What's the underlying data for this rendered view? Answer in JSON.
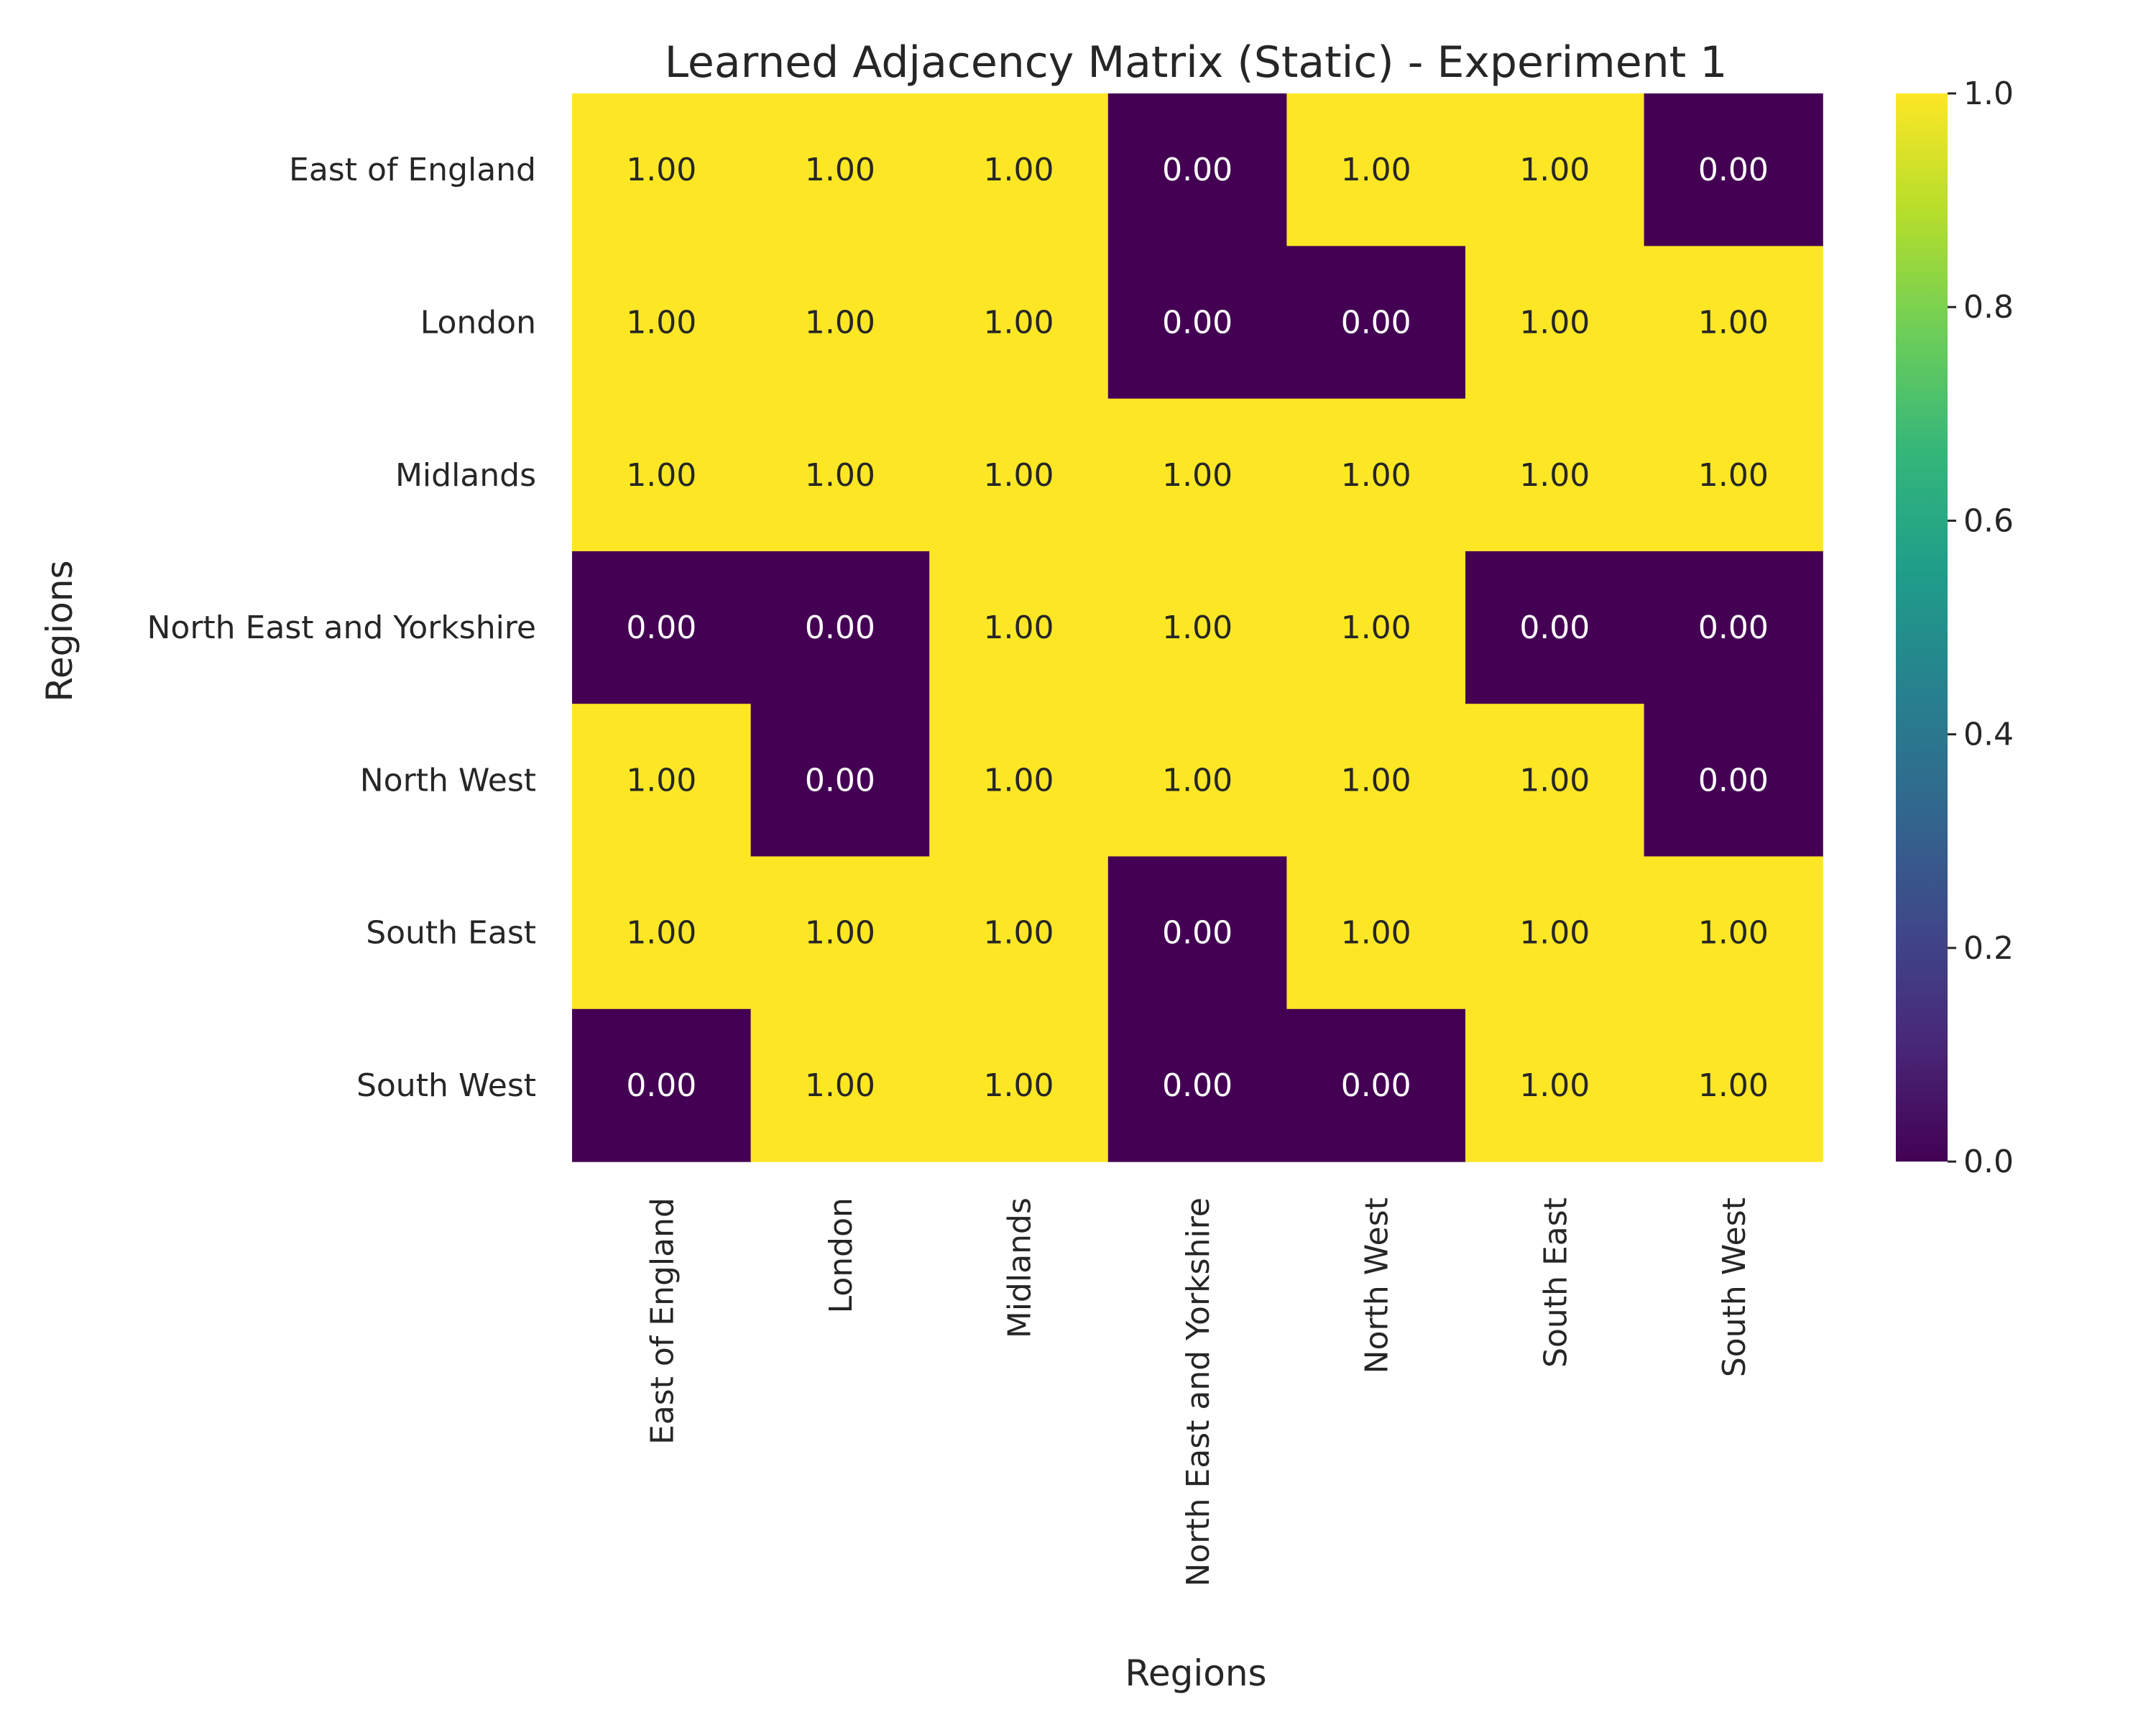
{
  "chart_data": {
    "type": "heatmap",
    "title": "Learned Adjacency Matrix (Static) - Experiment 1",
    "xlabel": "Regions",
    "ylabel": "Regions",
    "x_categories": [
      "East of England",
      "London",
      "Midlands",
      "North East and Yorkshire",
      "North West",
      "South East",
      "South West"
    ],
    "y_categories": [
      "East of England",
      "London",
      "Midlands",
      "North East and Yorkshire",
      "North West",
      "South East",
      "South West"
    ],
    "values": [
      [
        1,
        1,
        1,
        0,
        1,
        1,
        0
      ],
      [
        1,
        1,
        1,
        0,
        0,
        1,
        1
      ],
      [
        1,
        1,
        1,
        1,
        1,
        1,
        1
      ],
      [
        0,
        0,
        1,
        1,
        1,
        0,
        0
      ],
      [
        1,
        0,
        1,
        1,
        1,
        1,
        0
      ],
      [
        1,
        1,
        1,
        0,
        1,
        1,
        1
      ],
      [
        0,
        1,
        1,
        0,
        0,
        1,
        1
      ]
    ],
    "value_format": "0.00",
    "colormap": "viridis",
    "colorbar": {
      "range": [
        0.0,
        1.0
      ],
      "ticks": [
        "0.0",
        "0.2",
        "0.4",
        "0.6",
        "0.8",
        "1.0"
      ]
    },
    "colors": {
      "low": "#440154",
      "high": "#fde725",
      "viridis_stops": [
        "#440154",
        "#482878",
        "#3e4989",
        "#31688e",
        "#26828e",
        "#1f9e89",
        "#35b779",
        "#6ece58",
        "#b5de2b",
        "#fde725"
      ]
    }
  }
}
